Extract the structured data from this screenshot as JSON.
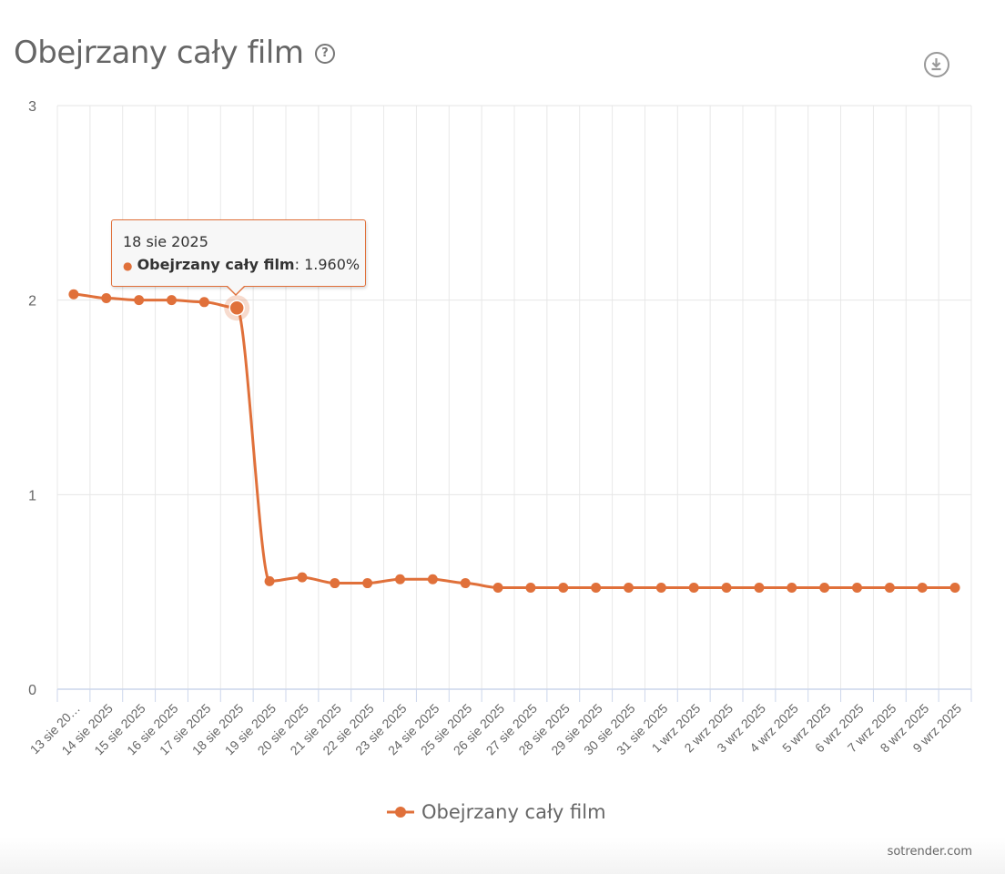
{
  "header": {
    "title": "Obejrzany cały film",
    "help_icon": "question-circle-icon",
    "download_icon": "download-icon"
  },
  "tooltip": {
    "date": "18 sie 2025",
    "series": "Obejrzany cały film",
    "value": ": 1.960%"
  },
  "credit": "sotrender.com",
  "chart_data": {
    "type": "line",
    "title": "Obejrzany cały film",
    "xlabel": "",
    "ylabel": "",
    "ylim": [
      0,
      3
    ],
    "yticks": [
      "0",
      "1",
      "2",
      "3"
    ],
    "grid": true,
    "legend": "bottom-center",
    "color": "#e0703a",
    "categories": [
      "13 sie 20…",
      "14 sie 2025",
      "15 sie 2025",
      "16 sie 2025",
      "17 sie 2025",
      "18 sie 2025",
      "19 sie 2025",
      "20 sie 2025",
      "21 sie 2025",
      "22 sie 2025",
      "23 sie 2025",
      "24 sie 2025",
      "25 sie 2025",
      "26 sie 2025",
      "27 sie 2025",
      "28 sie 2025",
      "29 sie 2025",
      "30 sie 2025",
      "31 sie 2025",
      "1 wrz 2025",
      "2 wrz 2025",
      "3 wrz 2025",
      "4 wrz 2025",
      "5 wrz 2025",
      "6 wrz 2025",
      "7 wrz 2025",
      "8 wrz 2025",
      "9 wrz 2025"
    ],
    "series": [
      {
        "name": "Obejrzany cały film",
        "values": [
          2.03,
          2.01,
          2.0,
          2.0,
          1.99,
          1.96,
          0.555,
          0.575,
          0.545,
          0.545,
          0.565,
          0.565,
          0.545,
          0.522,
          0.522,
          0.522,
          0.522,
          0.522,
          0.522,
          0.522,
          0.522,
          0.522,
          0.522,
          0.522,
          0.522,
          0.522,
          0.522,
          0.522
        ]
      }
    ],
    "highlighted_index": 5
  }
}
